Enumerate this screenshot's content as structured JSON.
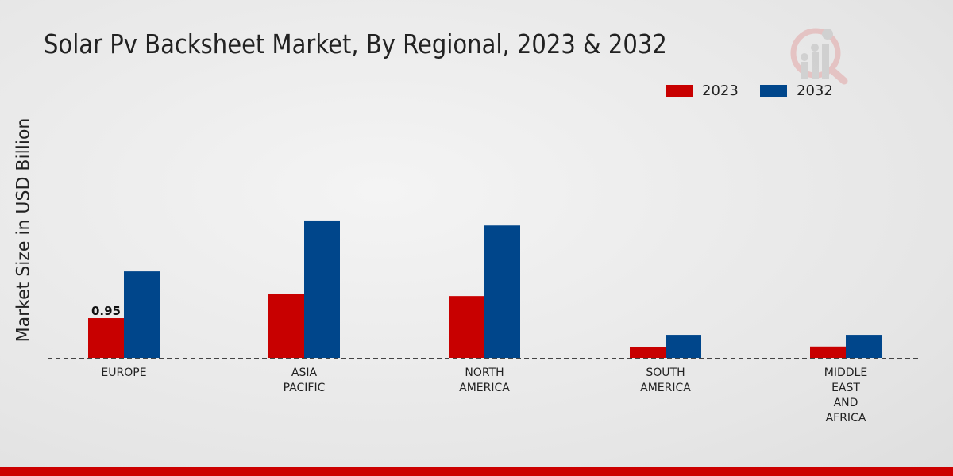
{
  "chart_data": {
    "type": "bar",
    "title": "Solar Pv Backsheet Market, By Regional, 2023 & 2032",
    "xlabel": "",
    "ylabel": "Market Size in USD Billion",
    "categories": [
      [
        "EUROPE"
      ],
      [
        "ASIA",
        "PACIFIC"
      ],
      [
        "NORTH",
        "AMERICA"
      ],
      [
        "SOUTH",
        "AMERICA"
      ],
      [
        "MIDDLE",
        "EAST",
        "AND",
        "AFRICA"
      ]
    ],
    "series": [
      {
        "name": "2023",
        "color": "#c80000",
        "values": [
          0.95,
          1.54,
          1.48,
          0.25,
          0.27
        ]
      },
      {
        "name": "2032",
        "color": "#00468b",
        "values": [
          2.07,
          3.29,
          3.17,
          0.55,
          0.55
        ]
      }
    ],
    "data_labels": [
      {
        "series": "2023",
        "category": "EUROPE",
        "text": "0.95"
      }
    ],
    "ylim": [
      0,
      3.6
    ],
    "legend": "top-right",
    "grid": false
  }
}
